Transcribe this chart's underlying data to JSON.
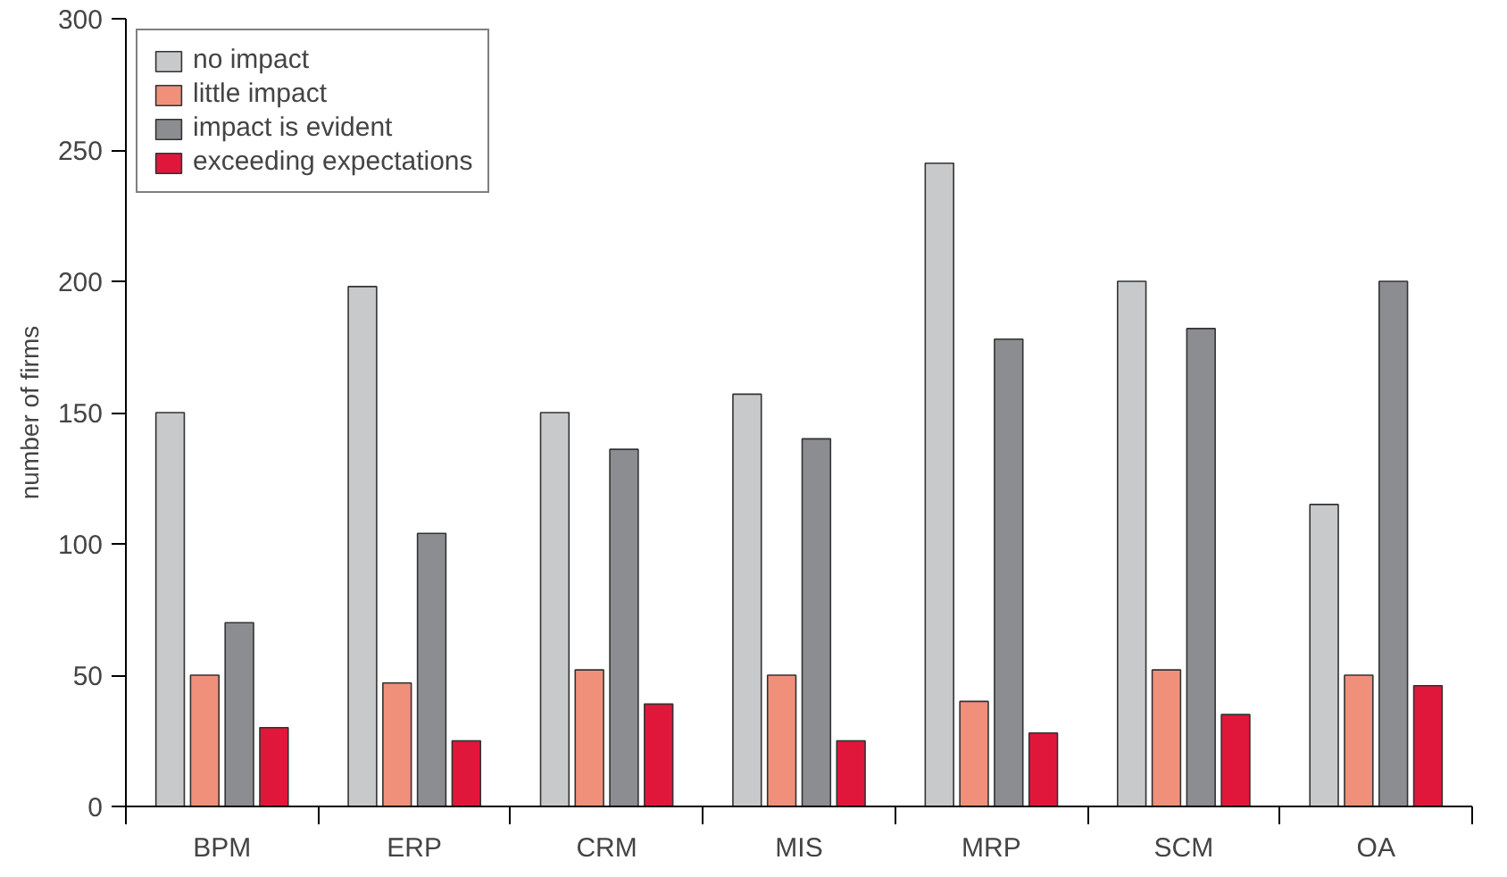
{
  "chart_data": {
    "type": "bar",
    "ylabel": "number of firms",
    "categories": [
      "BPM",
      "ERP",
      "CRM",
      "MIS",
      "MRP",
      "SCM",
      "OA"
    ],
    "series": [
      {
        "name": "no impact",
        "color": "#c8c9cb",
        "values": [
          150,
          198,
          150,
          157,
          245,
          200,
          115
        ]
      },
      {
        "name": "little impact",
        "color": "#f0907a",
        "values": [
          50,
          47,
          52,
          50,
          40,
          52,
          50
        ]
      },
      {
        "name": "impact is evident",
        "color": "#8c8d90",
        "values": [
          70,
          104,
          136,
          140,
          178,
          182,
          200
        ]
      },
      {
        "name": "exceeding expectations",
        "color": "#e0173a",
        "values": [
          30,
          25,
          39,
          25,
          28,
          35,
          46
        ]
      }
    ],
    "ylim": [
      0,
      300
    ],
    "yticks": [
      0,
      50,
      100,
      150,
      200,
      250,
      300
    ],
    "grid": false,
    "legend": "top left"
  }
}
